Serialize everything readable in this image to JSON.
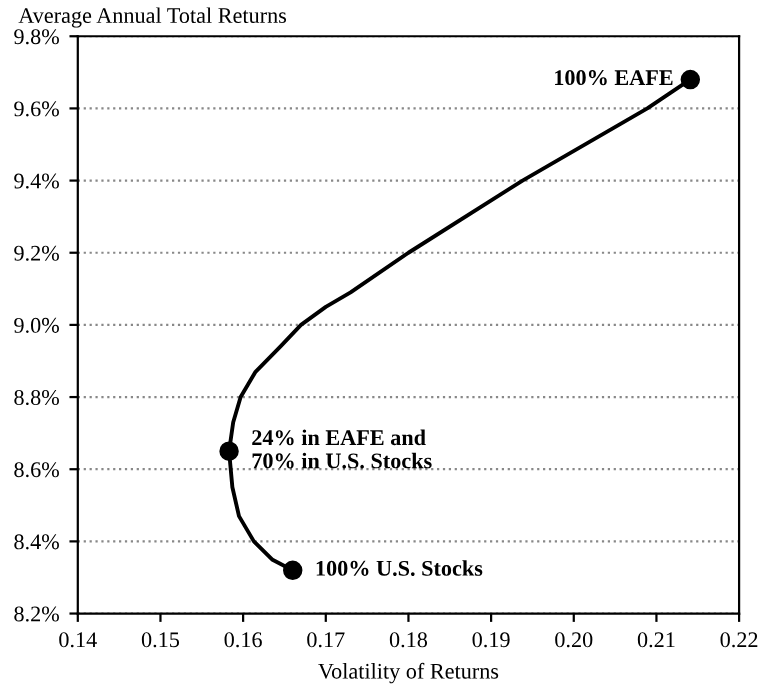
{
  "chart_data": {
    "type": "line",
    "ylabel": "Average Annual Total Returns",
    "xlabel": "Volatility of Returns",
    "series": [
      {
        "type": "line",
        "color": "#000000",
        "marker": "none",
        "line_style": "solid",
        "x": [
          0.166,
          0.1635,
          0.1613,
          0.1595,
          0.1587,
          0.1583,
          0.1588,
          0.1597,
          0.1615,
          0.1645,
          0.167,
          0.17,
          0.173,
          0.18,
          0.1938,
          0.2089,
          0.2141
        ],
        "values": [
          8.32,
          8.35,
          8.4,
          8.47,
          8.55,
          8.65,
          8.73,
          8.8,
          8.87,
          8.94,
          9.0,
          9.05,
          9.09,
          9.2,
          9.4,
          9.6,
          9.68
        ]
      },
      {
        "type": "scatter",
        "color": "#000000",
        "marker": "circle",
        "x": [
          0.166,
          0.1583,
          0.2141
        ],
        "values": [
          8.32,
          8.65,
          9.68
        ]
      }
    ],
    "annotations": [
      {
        "text": "100% EAFE",
        "x": 0.2141,
        "y": 9.68
      },
      {
        "text": "24% in EAFE and\n70% in U.S. Stocks",
        "x": 0.1583,
        "y": 8.65
      },
      {
        "text": "100% U.S. Stocks",
        "x": 0.166,
        "y": 8.32
      }
    ],
    "xlim": [
      0.14,
      0.22
    ],
    "ylim": [
      8.2,
      9.8
    ],
    "xticks": [
      {
        "value": 0.14,
        "label": "0.14"
      },
      {
        "value": 0.15,
        "label": "0.15"
      },
      {
        "value": 0.16,
        "label": "0.16"
      },
      {
        "value": 0.17,
        "label": "0.17"
      },
      {
        "value": 0.18,
        "label": "0.18"
      },
      {
        "value": 0.19,
        "label": "0.19"
      },
      {
        "value": 0.2,
        "label": "0.20"
      },
      {
        "value": 0.21,
        "label": "0.21"
      },
      {
        "value": 0.22,
        "label": "0.22"
      }
    ],
    "yticks": [
      {
        "value": 8.2,
        "label": "8.2%"
      },
      {
        "value": 8.4,
        "label": "8.4%"
      },
      {
        "value": 8.6,
        "label": "8.6%"
      },
      {
        "value": 8.8,
        "label": "8.8%"
      },
      {
        "value": 9.0,
        "label": "9.0%"
      },
      {
        "value": 9.2,
        "label": "9.2%"
      },
      {
        "value": 9.4,
        "label": "9.4%"
      },
      {
        "value": 9.6,
        "label": "9.6%"
      },
      {
        "value": 9.8,
        "label": "9.8%"
      }
    ],
    "grid": "y",
    "legend": false
  }
}
